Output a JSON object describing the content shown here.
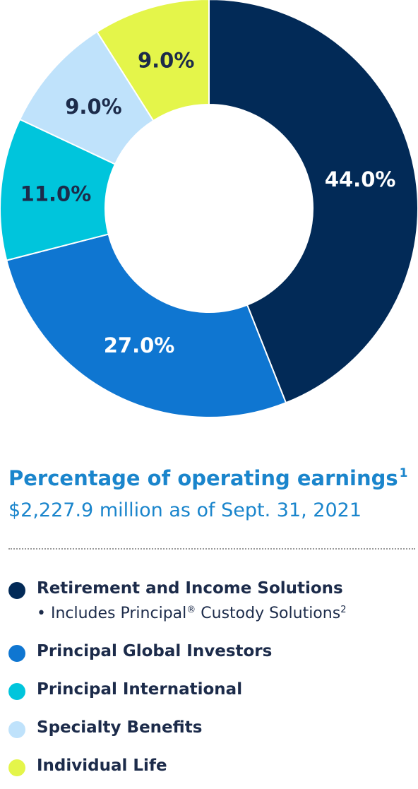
{
  "chart_data": {
    "type": "pie",
    "variant": "donut",
    "title": "Percentage of operating earnings",
    "title_footnote": "1",
    "subtitle": "$2,227.9 million as of Sept. 31, 2021",
    "unit": "%",
    "slices": [
      {
        "name": "Retirement and Income Solutions",
        "value": 44.0,
        "label": "44.0%",
        "color": "#022a57",
        "label_color": "#ffffff"
      },
      {
        "name": "Principal Global Investors",
        "value": 27.0,
        "label": "27.0%",
        "color": "#0f76d1",
        "label_color": "#ffffff"
      },
      {
        "name": "Principal International",
        "value": 11.0,
        "label": "11.0%",
        "color": "#00c5dc",
        "label_color": "#1c2b4a"
      },
      {
        "name": "Specialty Benefits",
        "value": 9.0,
        "label": "9.0%",
        "color": "#bfe2fb",
        "label_color": "#1c2b4a"
      },
      {
        "name": "Individual Life",
        "value": 9.0,
        "label": "9.0%",
        "color": "#e4f54a",
        "label_color": "#1c2b4a"
      }
    ],
    "legend_placement": "bottom"
  },
  "legend": {
    "items": [
      {
        "label": "Retirement and Income Solutions",
        "color": "#022a57"
      },
      {
        "label": "Principal Global Investors",
        "color": "#0f76d1"
      },
      {
        "label": "Principal International",
        "color": "#00c5dc"
      },
      {
        "label": "Specialty Benefits",
        "color": "#bfe2fb"
      },
      {
        "label": "Individual Life",
        "color": "#e4f54a"
      }
    ],
    "note_prefix": "• Includes Principal",
    "note_registered": "®",
    "note_suffix": " Custody Solutions",
    "note_footnote": "2"
  }
}
